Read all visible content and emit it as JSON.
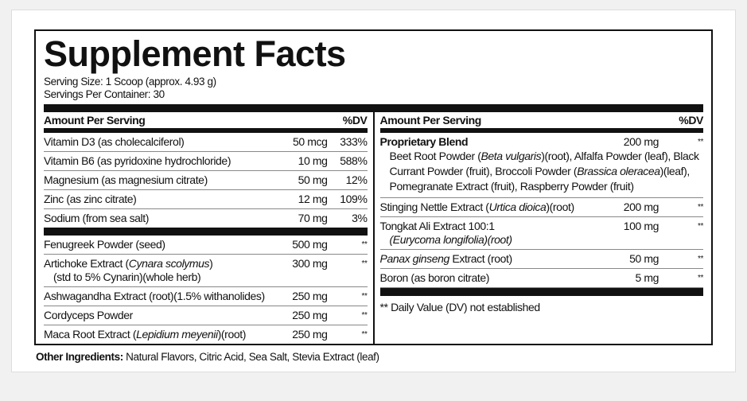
{
  "title": "Supplement Facts",
  "serving_size": "Serving Size: 1 Scoop (approx. 4.93 g)",
  "servings_per_container": "Servings Per Container: 30",
  "header": {
    "amount": "Amount Per Serving",
    "dv": "%DV"
  },
  "left_group1": [
    {
      "name": [
        {
          "t": "Vitamin D3 (as cholecalciferol)"
        }
      ],
      "amount": "50 mcg",
      "dv": "333%"
    },
    {
      "name": [
        {
          "t": "Vitamin B6 (as pyridoxine hydrochloride)"
        }
      ],
      "amount": "10 mg",
      "dv": "588%"
    },
    {
      "name": [
        {
          "t": "Magnesium (as magnesium citrate)"
        }
      ],
      "amount": "50 mg",
      "dv": "12%"
    },
    {
      "name": [
        {
          "t": "Zinc (as zinc citrate)"
        }
      ],
      "amount": "12 mg",
      "dv": "109%"
    },
    {
      "name": [
        {
          "t": "Sodium (from sea salt)"
        }
      ],
      "amount": "70 mg",
      "dv": "3%"
    }
  ],
  "left_group2": [
    {
      "name": [
        {
          "t": "Fenugreek Powder (seed)"
        }
      ],
      "amount": "500 mg",
      "dv": "**"
    },
    {
      "name": [
        {
          "t": "Artichoke Extract ("
        },
        {
          "t": "Cynara scolymus",
          "i": true
        },
        {
          "t": ")"
        }
      ],
      "name2": [
        {
          "t": "(std to 5% Cynarin)(whole herb)"
        }
      ],
      "amount": "300 mg",
      "dv": "**"
    },
    {
      "name": [
        {
          "t": "Ashwagandha Extract (root)(1.5% withanolides)"
        }
      ],
      "amount": "250 mg",
      "dv": "**"
    },
    {
      "name": [
        {
          "t": "Cordyceps Powder"
        }
      ],
      "amount": "250 mg",
      "dv": "**"
    },
    {
      "name": [
        {
          "t": "Maca Root Extract ("
        },
        {
          "t": "Lepidium meyenii",
          "i": true
        },
        {
          "t": ")(root)"
        }
      ],
      "amount": "250 mg",
      "dv": "**"
    }
  ],
  "blend": {
    "name": "Proprietary Blend",
    "amount": "200 mg",
    "dv": "**",
    "ingredients": [
      {
        "t": "Beet Root Powder ("
      },
      {
        "t": "Beta vulgaris",
        "i": true
      },
      {
        "t": ")(root), Alfalfa Powder (leaf), Black Currant Powder (fruit), Broccoli Powder ("
      },
      {
        "t": "Brassica oleracea",
        "i": true
      },
      {
        "t": ")(leaf), Pomegranate Extract (fruit), Raspberry Powder (fruit)"
      }
    ]
  },
  "right_rows": [
    {
      "name": [
        {
          "t": "Stinging Nettle Extract ("
        },
        {
          "t": "Urtica dioica",
          "i": true
        },
        {
          "t": ")(root)"
        }
      ],
      "amount": "200 mg",
      "dv": "**"
    },
    {
      "name": [
        {
          "t": "Tongkat Ali Extract 100:1"
        }
      ],
      "name2": [
        {
          "t": "(Eurycoma longifolia)(root)",
          "i": true
        }
      ],
      "amount": "100 mg",
      "dv": "**"
    },
    {
      "name": [
        {
          "t": "Panax ginseng",
          "i": true
        },
        {
          "t": " Extract (root)"
        }
      ],
      "amount": "50 mg",
      "dv": "**"
    },
    {
      "name": [
        {
          "t": "Boron (as boron citrate)"
        }
      ],
      "amount": "5 mg",
      "dv": "**"
    }
  ],
  "footnote": "** Daily Value (DV) not established",
  "other_ingredients": {
    "label": "Other Ingredients:",
    "value": " Natural Flavors, Citric Acid, Sea Salt, Stevia Extract (leaf)"
  }
}
